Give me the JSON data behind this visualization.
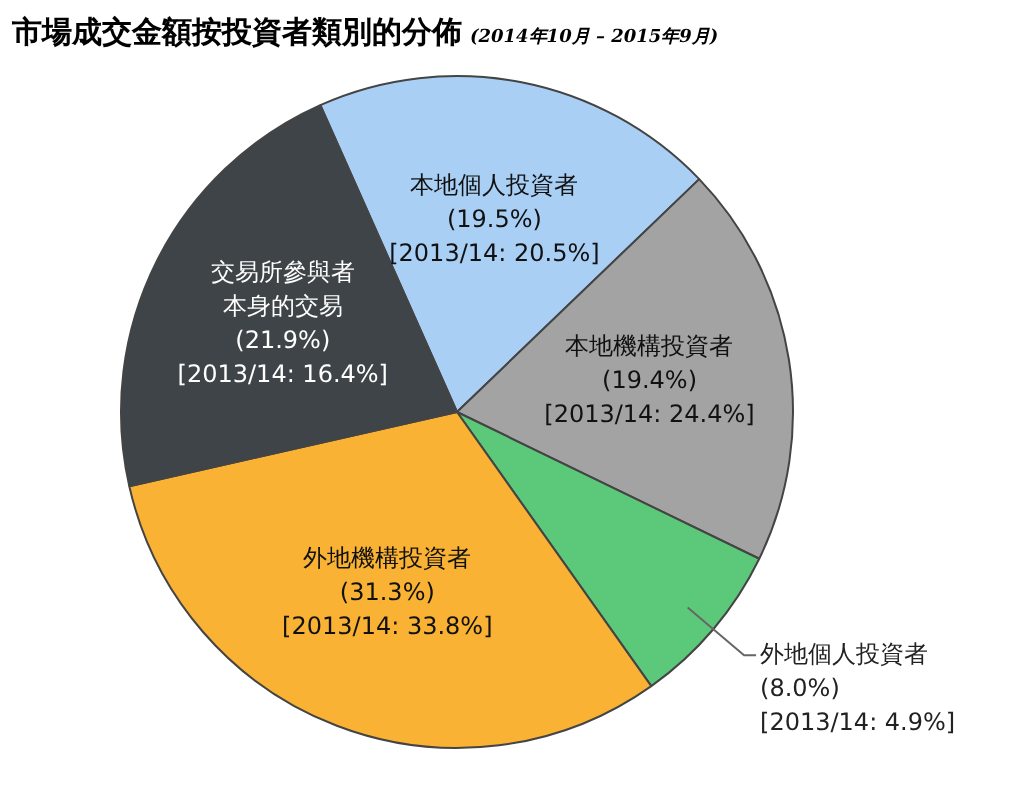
{
  "chart_data": {
    "type": "pie",
    "title": "市場成交金額按投資者類別的分佈",
    "subtitle": "(2014年10月 – 2015年9月)",
    "categories": [
      "本地個人投資者",
      "本地機構投資者",
      "外地個人投資者",
      "外地機構投資者",
      "交易所參與者本身的交易"
    ],
    "values": [
      19.5,
      19.4,
      8.0,
      31.3,
      21.9
    ],
    "colors": [
      "#a9cff5",
      "#a3a3a3",
      "#5cc97a",
      "#f9b233",
      "#3e4447"
    ],
    "value_labels": [
      "(19.5%)",
      "(19.4%)",
      "(8.0%)",
      "(31.3%)",
      "(21.9%)"
    ],
    "annotations": [
      {
        "text": "[2013/14: 20.5%]",
        "x": "本地個人投資者"
      },
      {
        "text": "[2013/14: 24.4%]",
        "x": "本地機構投資者"
      },
      {
        "text": "[2013/14: 4.9%]",
        "x": "外地個人投資者"
      },
      {
        "text": "[2013/14: 33.8%]",
        "x": "外地機構投資者"
      },
      {
        "text": "[2013/14: 16.4%]",
        "x": "交易所參與者本身的交易"
      }
    ],
    "legend": false
  }
}
